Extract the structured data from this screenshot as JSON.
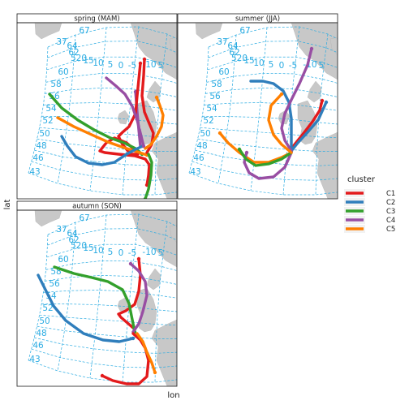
{
  "axes": {
    "xlabel": "lon",
    "ylabel": "lat"
  },
  "legend": {
    "title": "cluster",
    "items": [
      {
        "label": "C1",
        "color": "#e31a1c"
      },
      {
        "label": "C2",
        "color": "#2f7ebc"
      },
      {
        "label": "C3",
        "color": "#33a02c"
      },
      {
        "label": "C4",
        "color": "#984ea3"
      },
      {
        "label": "C5",
        "color": "#ff7f00"
      }
    ]
  },
  "colors": {
    "land": "#c8c8c8",
    "grid": "#29abe2",
    "panel_border": "#1a1a1a",
    "strip_fill": "#ffffff"
  },
  "grid_labels": {
    "row1": [
      "67",
      "37",
      "64",
      "62",
      "520",
      "15",
      "10",
      "5",
      "0",
      "-5",
      "-10",
      "5"
    ],
    "row2": [
      "60",
      "58",
      "56",
      "54",
      "52",
      "50",
      "48",
      "46",
      "43"
    ]
  },
  "panels": [
    {
      "id": "spring",
      "strip": "spring (MAM)"
    },
    {
      "id": "summer",
      "strip": "summer (JJA)"
    },
    {
      "id": "autumn",
      "strip": "autumn (SON)"
    }
  ]
}
